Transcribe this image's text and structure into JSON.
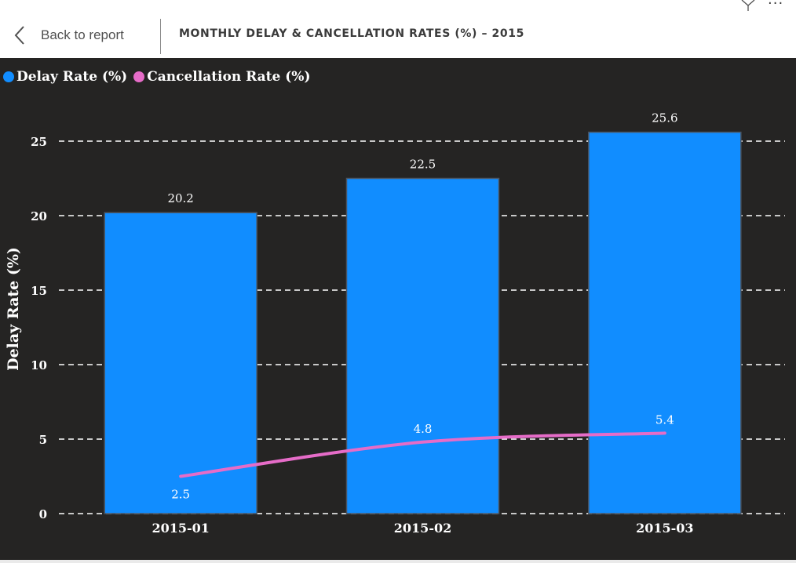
{
  "header": {
    "back_label": "Back to report",
    "title": "MONTHLY DELAY & CANCELLATION RATES (%) – 2015"
  },
  "legend": [
    {
      "label": "Delay Rate (%)",
      "color": "#118DFF"
    },
    {
      "label": "Cancellation Rate (%)",
      "color": "#E66CC8"
    }
  ],
  "chart_data": {
    "type": "bar",
    "categories": [
      "2015-01",
      "2015-02",
      "2015-03"
    ],
    "series": [
      {
        "name": "Delay Rate (%)",
        "type": "bar",
        "values": [
          20.2,
          22.5,
          25.6
        ],
        "color": "#118DFF"
      },
      {
        "name": "Cancellation Rate (%)",
        "type": "line",
        "values": [
          2.5,
          4.8,
          5.4
        ],
        "color": "#E66CC8"
      }
    ],
    "ylabel": "Delay Rate (%)",
    "ylim": [
      0,
      25
    ],
    "yticks": [
      0,
      5,
      10,
      15,
      20,
      25
    ],
    "grid": true,
    "legend_position": "top-left",
    "background": "#252423"
  }
}
